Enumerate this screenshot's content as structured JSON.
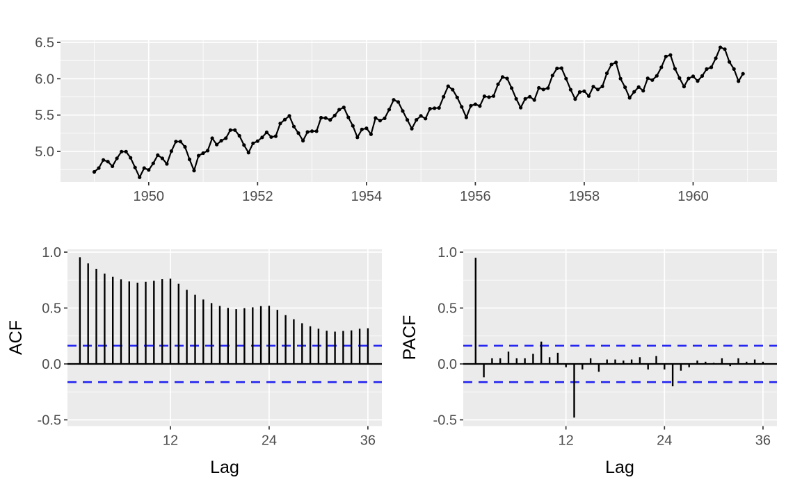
{
  "figure": {
    "background": "#FFFFFF",
    "panel_bg": "#EBEBEB",
    "grid_color": "#FFFFFF",
    "axis_text_color": "#4D4D4D",
    "tick_mark_color": "#333333",
    "data_color": "#000000",
    "conf_line_color": "#2222F2"
  },
  "axis_titles": {
    "acf_y": "ACF",
    "pacf_y": "PACF",
    "acf_x": "Lag",
    "pacf_x": "Lag"
  },
  "chart_data": [
    {
      "id": "timeseries",
      "type": "line",
      "title": "",
      "xlabel": "",
      "ylabel": "",
      "x_start_year": 1949,
      "frequency": 12,
      "transform": "log",
      "values": [
        112,
        118,
        132,
        129,
        121,
        135,
        148,
        148,
        136,
        119,
        104,
        118,
        115,
        126,
        141,
        135,
        125,
        149,
        170,
        170,
        158,
        133,
        114,
        140,
        145,
        150,
        178,
        163,
        172,
        178,
        199,
        199,
        184,
        162,
        146,
        166,
        171,
        180,
        193,
        181,
        183,
        218,
        230,
        242,
        209,
        191,
        172,
        194,
        196,
        196,
        236,
        235,
        229,
        243,
        264,
        272,
        237,
        211,
        180,
        201,
        204,
        188,
        235,
        227,
        234,
        264,
        302,
        293,
        259,
        229,
        203,
        229,
        242,
        233,
        267,
        269,
        270,
        315,
        364,
        347,
        312,
        274,
        237,
        278,
        284,
        277,
        317,
        313,
        318,
        374,
        413,
        405,
        355,
        306,
        271,
        306,
        315,
        301,
        356,
        348,
        355,
        422,
        465,
        467,
        404,
        347,
        305,
        336,
        340,
        318,
        362,
        348,
        363,
        435,
        491,
        505,
        404,
        359,
        310,
        337,
        360,
        342,
        406,
        396,
        420,
        472,
        548,
        559,
        463,
        407,
        362,
        405,
        417,
        391,
        419,
        461,
        472,
        535,
        622,
        606,
        508,
        461,
        390,
        432
      ],
      "xlim": [
        1948.38,
        1961.54
      ],
      "ylim": [
        4.58,
        6.529
      ],
      "x_ticks": [
        1950,
        1952,
        1954,
        1956,
        1958,
        1960
      ],
      "x_tick_labels": [
        "1950",
        "1952",
        "1954",
        "1956",
        "1958",
        "1960"
      ],
      "x_minor": [
        1949,
        1951,
        1953,
        1955,
        1957,
        1959,
        1961
      ],
      "y_ticks": [
        5.0,
        5.5,
        6.0,
        6.5
      ],
      "y_tick_labels": [
        "5.0",
        "5.5",
        "6.0",
        "6.5"
      ],
      "y_minor": [
        4.75,
        5.25,
        5.75,
        6.25
      ],
      "legend": "none",
      "grid": true
    },
    {
      "id": "acf",
      "type": "bar",
      "title": "",
      "xlabel": "Lag",
      "ylabel": "ACF",
      "lag_start": 1,
      "values": [
        0.954,
        0.899,
        0.851,
        0.808,
        0.779,
        0.756,
        0.738,
        0.727,
        0.734,
        0.744,
        0.758,
        0.762,
        0.717,
        0.663,
        0.618,
        0.576,
        0.544,
        0.519,
        0.501,
        0.49,
        0.498,
        0.506,
        0.517,
        0.52,
        0.484,
        0.437,
        0.4,
        0.364,
        0.337,
        0.315,
        0.297,
        0.289,
        0.295,
        0.3,
        0.315,
        0.319
      ],
      "conf_band": 0.163,
      "zero_line": 0,
      "xlim": [
        -0.51,
        37.7
      ],
      "ylim": [
        -0.556,
        1.025
      ],
      "x_ticks": [
        12,
        24,
        36
      ],
      "x_tick_labels": [
        "12",
        "24",
        "36"
      ],
      "x_minor": [],
      "y_ticks": [
        -0.5,
        0.0,
        0.5,
        1.0
      ],
      "y_tick_labels": [
        "-0.5",
        "0.0",
        "0.5",
        "1.0"
      ],
      "y_minor": [
        -0.25,
        0.25,
        0.75
      ],
      "legend": "none",
      "grid": true
    },
    {
      "id": "pacf",
      "type": "bar",
      "title": "",
      "xlabel": "Lag",
      "ylabel": "PACF",
      "lag_start": 1,
      "values": [
        0.95,
        -0.12,
        0.05,
        0.05,
        0.11,
        0.05,
        0.05,
        0.09,
        0.2,
        0.06,
        0.1,
        -0.03,
        -0.48,
        -0.05,
        0.05,
        -0.07,
        0.04,
        0.04,
        0.03,
        0.04,
        0.06,
        -0.05,
        0.07,
        -0.05,
        -0.2,
        -0.06,
        -0.03,
        0.03,
        0.02,
        0.01,
        0.05,
        -0.02,
        0.05,
        0.02,
        0.04,
        0.02
      ],
      "conf_band": 0.163,
      "zero_line": 0,
      "xlim": [
        -0.51,
        37.7
      ],
      "ylim": [
        -0.556,
        1.025
      ],
      "x_ticks": [
        12,
        24,
        36
      ],
      "x_tick_labels": [
        "12",
        "24",
        "36"
      ],
      "x_minor": [],
      "y_ticks": [
        -0.5,
        0.0,
        0.5,
        1.0
      ],
      "y_tick_labels": [
        "-0.5",
        "0.0",
        "0.5",
        "1.0"
      ],
      "y_minor": [
        -0.25,
        0.25,
        0.75
      ],
      "legend": "none",
      "grid": true
    }
  ]
}
